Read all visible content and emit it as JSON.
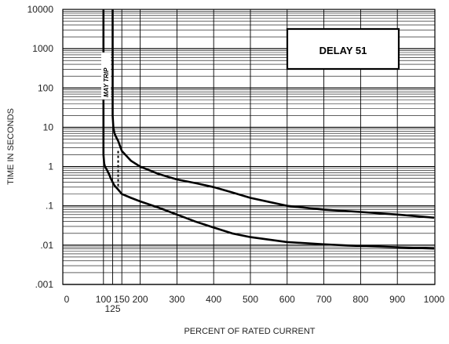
{
  "chart_data": {
    "type": "line",
    "title": "",
    "xlabel": "PERCENT OF RATED CURRENT",
    "ylabel": "TIME IN SECONDS",
    "xlim": [
      0,
      1000
    ],
    "ylim": [
      0.001,
      10000
    ],
    "yscale": "log",
    "x_ticks": [
      0,
      100,
      125,
      150,
      200,
      300,
      400,
      500,
      600,
      700,
      800,
      900,
      1000
    ],
    "x_tick_labels": [
      "0",
      "100",
      "125",
      "150",
      "200",
      "300",
      "400",
      "500",
      "600",
      "700",
      "800",
      "900",
      "1000"
    ],
    "y_ticks": [
      0.001,
      0.01,
      0.1,
      1,
      10,
      100,
      1000,
      10000
    ],
    "y_tick_labels": [
      ".001",
      ".01",
      ".1",
      "1",
      "10",
      "100",
      "1000",
      "10000"
    ],
    "grid": true,
    "legend_placement": "top-right",
    "legend_label": "DELAY 51",
    "annotation": "MAY TRIP",
    "series": [
      {
        "role": "upper-bound",
        "x": [
          125,
          125,
          127,
          130,
          135,
          140,
          150,
          175,
          200,
          250,
          300,
          350,
          400,
          450,
          500,
          600,
          700,
          800,
          900,
          1000
        ],
        "y": [
          10000,
          20,
          10,
          7,
          5.5,
          4.5,
          2.5,
          1.4,
          1.0,
          0.65,
          0.47,
          0.38,
          0.3,
          0.22,
          0.16,
          0.1,
          0.08,
          0.07,
          0.06,
          0.05
        ]
      },
      {
        "role": "lower-bound",
        "x": [
          100,
          100,
          101,
          102,
          104,
          107,
          110,
          115,
          120,
          125,
          130,
          140,
          150,
          175,
          200,
          250,
          300,
          350,
          400,
          450,
          500,
          600,
          700,
          800,
          900,
          1000
        ],
        "y": [
          10000,
          2,
          1.5,
          1.2,
          1.0,
          0.9,
          0.8,
          0.65,
          0.5,
          0.4,
          0.33,
          0.26,
          0.2,
          0.16,
          0.13,
          0.09,
          0.06,
          0.04,
          0.028,
          0.02,
          0.016,
          0.012,
          0.0105,
          0.0095,
          0.0088,
          0.0082
        ]
      }
    ],
    "dashed_segment": {
      "x": 140,
      "y_range": [
        0.3,
        2.5
      ]
    }
  }
}
